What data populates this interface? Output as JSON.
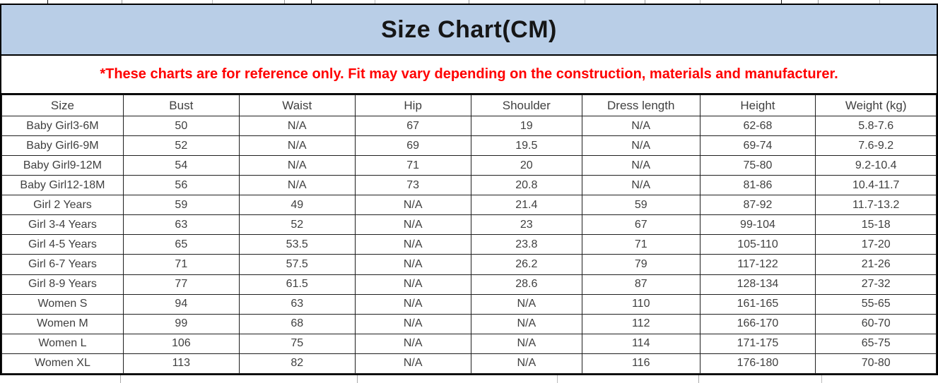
{
  "title": "Size Chart(CM)",
  "disclaimer": "*These charts are for reference only. Fit may vary depending on the construction, materials and manufacturer.",
  "colors": {
    "title_band_bg": "#b9cee7",
    "disclaimer_text": "#ff0000",
    "border": "#000000",
    "cell_text": "#3f3f3f"
  },
  "chart_data": {
    "type": "table",
    "title": "Size Chart(CM)",
    "columns": [
      "Size",
      "Bust",
      "Waist",
      "Hip",
      "Shoulder",
      "Dress length",
      "Height",
      "Weight (kg)"
    ],
    "rows": [
      [
        "Baby Girl3-6M",
        "50",
        "N/A",
        "67",
        "19",
        "N/A",
        "62-68",
        "5.8-7.6"
      ],
      [
        "Baby Girl6-9M",
        "52",
        "N/A",
        "69",
        "19.5",
        "N/A",
        "69-74",
        "7.6-9.2"
      ],
      [
        "Baby Girl9-12M",
        "54",
        "N/A",
        "71",
        "20",
        "N/A",
        "75-80",
        "9.2-10.4"
      ],
      [
        "Baby Girl12-18M",
        "56",
        "N/A",
        "73",
        "20.8",
        "N/A",
        "81-86",
        "10.4-11.7"
      ],
      [
        "Girl 2 Years",
        "59",
        "49",
        "N/A",
        "21.4",
        "59",
        "87-92",
        "11.7-13.2"
      ],
      [
        "Girl 3-4 Years",
        "63",
        "52",
        "N/A",
        "23",
        "67",
        "99-104",
        "15-18"
      ],
      [
        "Girl 4-5 Years",
        "65",
        "53.5",
        "N/A",
        "23.8",
        "71",
        "105-110",
        "17-20"
      ],
      [
        "Girl 6-7 Years",
        "71",
        "57.5",
        "N/A",
        "26.2",
        "79",
        "117-122",
        "21-26"
      ],
      [
        "Girl 8-9 Years",
        "77",
        "61.5",
        "N/A",
        "28.6",
        "87",
        "128-134",
        "27-32"
      ],
      [
        "Women S",
        "94",
        "63",
        "N/A",
        "N/A",
        "110",
        "161-165",
        "55-65"
      ],
      [
        "Women M",
        "99",
        "68",
        "N/A",
        "N/A",
        "112",
        "166-170",
        "60-70"
      ],
      [
        "Women L",
        "106",
        "75",
        "N/A",
        "N/A",
        "114",
        "171-175",
        "65-75"
      ],
      [
        "Women XL",
        "113",
        "82",
        "N/A",
        "N/A",
        "116",
        "176-180",
        "70-80"
      ]
    ]
  }
}
